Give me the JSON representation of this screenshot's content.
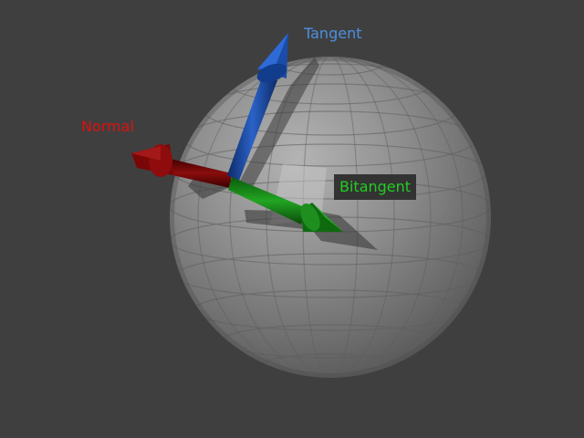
{
  "labels": {
    "tangent": "Tangent",
    "normal": "Normal",
    "bitangent": "Bitangent"
  },
  "colors": {
    "background": "#3f3f3f",
    "tangent": "#4d8fe0",
    "normal": "#dd1111",
    "bitangent": "#22cc22"
  }
}
